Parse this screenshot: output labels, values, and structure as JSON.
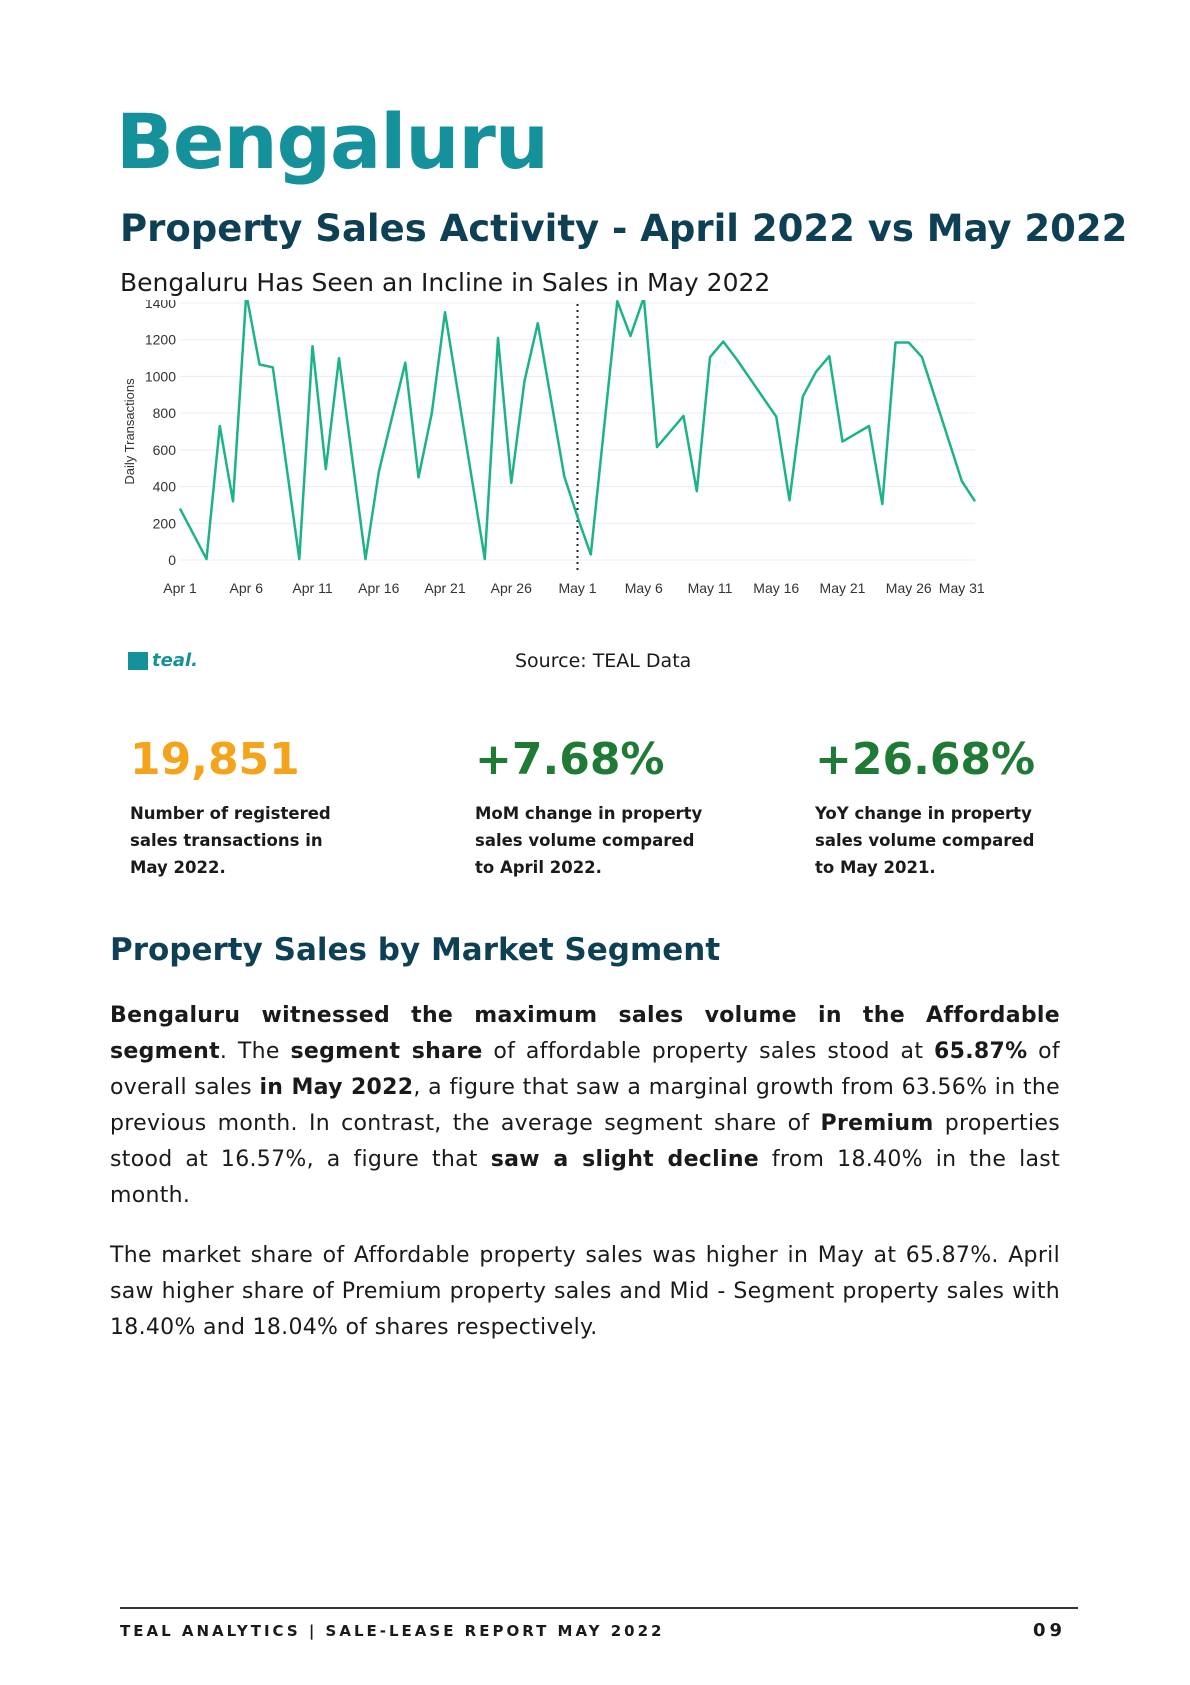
{
  "header": {
    "city": "Bengaluru",
    "subtitle": "Property Sales Activity - April 2022 vs May 2022"
  },
  "chart_data": {
    "type": "line",
    "title": "Bengaluru Has Seen an Incline in Sales in May 2022",
    "ylabel": "Daily Transactions",
    "xlabel": "",
    "ylim": [
      0,
      1400
    ],
    "yticks": [
      0,
      200,
      400,
      600,
      800,
      1000,
      1200,
      1400
    ],
    "xtick_labels": [
      "Apr 1",
      "Apr 6",
      "Apr 11",
      "Apr 16",
      "Apr 21",
      "Apr 26",
      "May 1",
      "May 6",
      "May 11",
      "May 16",
      "May 21",
      "May 26",
      "May 31"
    ],
    "xtick_days": [
      1,
      6,
      11,
      16,
      21,
      26,
      31,
      36,
      41,
      46,
      51,
      56,
      60
    ],
    "marker_day": 31,
    "grid": true,
    "line_color": "#1db38a",
    "series": [
      {
        "values": [
          {
            "x": "Apr 1",
            "y": 280
          },
          {
            "x": "Apr 3",
            "y": 5
          },
          {
            "x": "Apr 4",
            "y": 730
          },
          {
            "x": "Apr 5",
            "y": 320
          },
          {
            "x": "Apr 6",
            "y": 1450
          },
          {
            "x": "Apr 7",
            "y": 1065
          },
          {
            "x": "Apr 8",
            "y": 1050
          },
          {
            "x": "Apr 10",
            "y": 5
          },
          {
            "x": "Apr 11",
            "y": 1165
          },
          {
            "x": "Apr 12",
            "y": 495
          },
          {
            "x": "Apr 13",
            "y": 1100
          },
          {
            "x": "Apr 15",
            "y": 5
          },
          {
            "x": "Apr 16",
            "y": 480
          },
          {
            "x": "Apr 18",
            "y": 1075
          },
          {
            "x": "Apr 19",
            "y": 450
          },
          {
            "x": "Apr 20",
            "y": 800
          },
          {
            "x": "Apr 21",
            "y": 1350
          },
          {
            "x": "Apr 24",
            "y": 5
          },
          {
            "x": "Apr 25",
            "y": 1210
          },
          {
            "x": "Apr 26",
            "y": 420
          },
          {
            "x": "Apr 27",
            "y": 975
          },
          {
            "x": "Apr 28",
            "y": 1290
          },
          {
            "x": "Apr 30",
            "y": 455
          },
          {
            "x": "May 1",
            "y": 235
          },
          {
            "x": "May 2",
            "y": 30
          },
          {
            "x": "May 4",
            "y": 1410
          },
          {
            "x": "May 5",
            "y": 1220
          },
          {
            "x": "May 6",
            "y": 1430
          },
          {
            "x": "May 7",
            "y": 615
          },
          {
            "x": "May 9",
            "y": 785
          },
          {
            "x": "May 10",
            "y": 375
          },
          {
            "x": "May 11",
            "y": 1105
          },
          {
            "x": "May 12",
            "y": 1190
          },
          {
            "x": "May 13",
            "y": 1095
          },
          {
            "x": "May 16",
            "y": 780
          },
          {
            "x": "May 17",
            "y": 325
          },
          {
            "x": "May 18",
            "y": 890
          },
          {
            "x": "May 19",
            "y": 1025
          },
          {
            "x": "May 20",
            "y": 1110
          },
          {
            "x": "May 21",
            "y": 645
          },
          {
            "x": "May 23",
            "y": 730
          },
          {
            "x": "May 24",
            "y": 305
          },
          {
            "x": "May 25",
            "y": 1185
          },
          {
            "x": "May 26",
            "y": 1185
          },
          {
            "x": "May 27",
            "y": 1105
          },
          {
            "x": "May 30",
            "y": 430
          },
          {
            "x": "May 31",
            "y": 320
          }
        ]
      }
    ]
  },
  "chart_points_day": [
    1,
    3,
    4,
    5,
    6,
    7,
    8,
    10,
    11,
    12,
    13,
    15,
    16,
    18,
    19,
    20,
    21,
    24,
    25,
    26,
    27,
    28,
    30,
    31,
    32,
    34,
    35,
    36,
    37,
    39,
    40,
    41,
    42,
    43,
    46,
    47,
    48,
    49,
    50,
    51,
    53,
    54,
    55,
    56,
    57,
    60,
    61
  ],
  "logo": {
    "text": "teal."
  },
  "source": "Source: TEAL Data",
  "stats": [
    {
      "value": "19,851",
      "desc": "Number of registered\nsales transactions in\n May 2022."
    },
    {
      "value": "+7.68%",
      "desc": "MoM change in property\nsales volume compared\nto April 2022."
    },
    {
      "value": "+26.68%",
      "desc": "YoY change in property\nsales volume compared\nto May 2021."
    }
  ],
  "segment": {
    "title": "Property Sales by Market Segment",
    "p1": {
      "t1": "Bengaluru witnessed the maximum sales volume in the Affordable segment",
      "t2": ". The ",
      "t3": "segment share",
      "t4": " of affordable property sales stood at ",
      "t5": "65.87%",
      "t6": " of overall sales ",
      "t7": "in May 2022",
      "t8": ", a figure that saw a marginal growth from 63.56% in the previous month. In contrast, the average segment share of ",
      "t9": "Premium",
      "t10": " properties stood at 16.57%, a figure that ",
      "t11": "saw a slight decline",
      "t12": " from 18.40% in the last month."
    },
    "p2": "The market share of Affordable property sales was higher in May at 65.87%. April saw higher share of Premium property sales and Mid - Segment property sales with 18.40% and 18.04% of shares respectively."
  },
  "footer": {
    "text": "TEAL ANALYTICS | SALE-LEASE REPORT MAY 2022",
    "page": "09"
  }
}
